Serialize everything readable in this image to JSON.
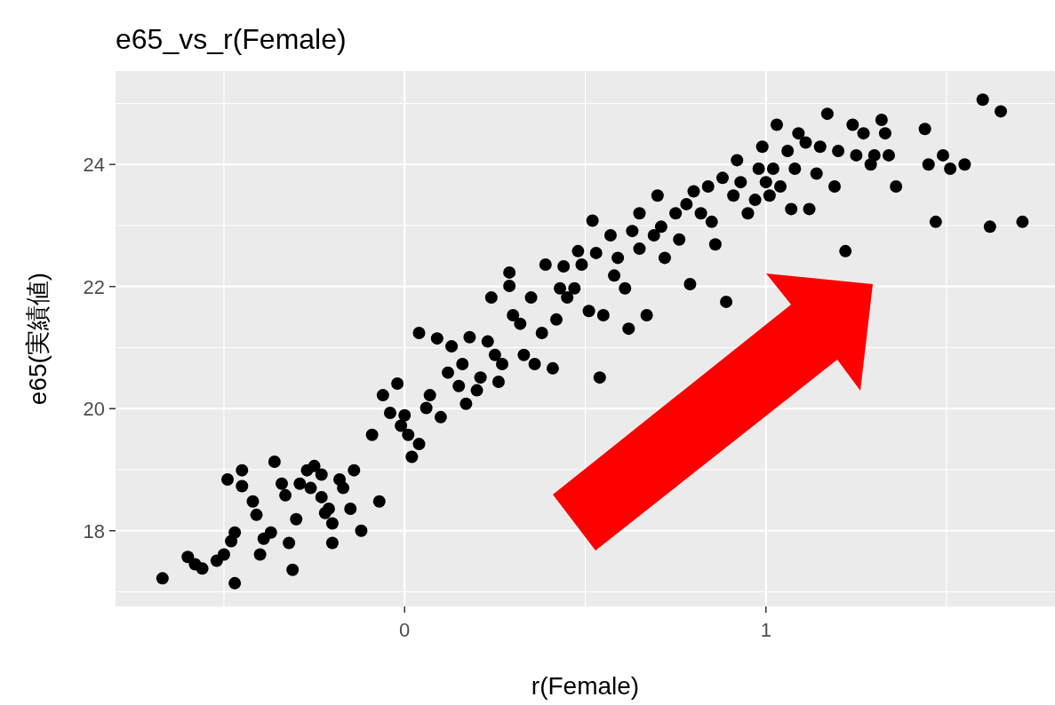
{
  "chart_data": {
    "type": "scatter",
    "title": "e65_vs_r(Female)",
    "xlabel": "r(Female)",
    "ylabel": "e65(実績値)",
    "color": "#000000",
    "marker": "circle",
    "grid": true,
    "xlim": [
      -0.8,
      1.8
    ],
    "ylim": [
      16.76,
      25.53
    ],
    "xticks": [
      {
        "value": -0.5,
        "label": null
      },
      0,
      {
        "value": 0.5,
        "label": null
      },
      1,
      {
        "value": 1.5,
        "label": null
      }
    ],
    "yticks": [
      {
        "value": 17,
        "label": null
      },
      18,
      {
        "value": 19,
        "label": null
      },
      20,
      {
        "value": 21,
        "label": null
      },
      22,
      {
        "value": 23,
        "label": null
      },
      24,
      {
        "value": 25,
        "label": null
      }
    ],
    "x": [
      -0.67,
      -0.6,
      -0.58,
      -0.56,
      -0.52,
      -0.5,
      -0.47,
      -0.48,
      -0.47,
      -0.49,
      -0.45,
      -0.45,
      -0.42,
      -0.41,
      -0.4,
      -0.39,
      -0.37,
      -0.36,
      -0.34,
      -0.33,
      -0.32,
      -0.31,
      -0.3,
      -0.29,
      -0.27,
      -0.26,
      -0.25,
      -0.23,
      -0.23,
      -0.22,
      -0.2,
      -0.21,
      -0.2,
      -0.18,
      -0.17,
      -0.15,
      -0.14,
      -0.12,
      -0.09,
      -0.07,
      -0.06,
      -0.04,
      -0.02,
      -0.01,
      0.0,
      0.01,
      0.02,
      0.04,
      0.04,
      0.06,
      0.07,
      0.09,
      0.1,
      0.12,
      0.13,
      0.15,
      0.16,
      0.17,
      0.18,
      0.2,
      0.21,
      0.23,
      0.24,
      0.25,
      0.26,
      0.27,
      0.29,
      0.29,
      0.3,
      0.32,
      0.33,
      0.35,
      0.36,
      0.38,
      0.39,
      0.41,
      0.42,
      0.43,
      0.44,
      0.45,
      0.47,
      0.48,
      0.49,
      0.51,
      0.52,
      0.53,
      0.54,
      0.55,
      0.57,
      0.58,
      0.59,
      0.61,
      0.62,
      0.63,
      0.65,
      0.65,
      0.67,
      0.69,
      0.7,
      0.71,
      0.72,
      0.75,
      0.76,
      0.78,
      0.79,
      0.8,
      0.82,
      0.84,
      0.85,
      0.86,
      0.88,
      0.89,
      0.91,
      0.92,
      0.93,
      0.95,
      0.97,
      0.98,
      0.99,
      1.0,
      1.01,
      1.02,
      1.03,
      1.04,
      1.06,
      1.07,
      1.08,
      1.09,
      1.11,
      1.12,
      1.14,
      1.15,
      1.17,
      1.19,
      1.2,
      1.22,
      1.24,
      1.25,
      1.27,
      1.29,
      1.3,
      1.32,
      1.33,
      1.34,
      1.36,
      1.44,
      1.45,
      1.47,
      1.49,
      1.51,
      1.55,
      1.6,
      1.62,
      1.65,
      1.71
    ],
    "values": [
      17.22,
      17.57,
      17.45,
      17.38,
      17.51,
      17.61,
      17.14,
      17.83,
      17.97,
      18.84,
      18.99,
      18.73,
      18.48,
      18.26,
      17.61,
      17.87,
      17.97,
      19.13,
      18.77,
      18.58,
      17.8,
      17.36,
      18.19,
      18.77,
      18.99,
      18.7,
      19.06,
      18.55,
      18.92,
      18.29,
      18.12,
      18.36,
      17.8,
      18.84,
      18.7,
      18.36,
      18.99,
      18.0,
      19.57,
      18.48,
      20.22,
      19.93,
      20.41,
      19.72,
      19.89,
      19.57,
      19.21,
      19.42,
      21.24,
      20.01,
      20.22,
      21.15,
      19.86,
      20.59,
      21.02,
      20.37,
      20.73,
      20.08,
      21.17,
      20.3,
      20.51,
      21.1,
      21.82,
      20.88,
      20.44,
      20.73,
      22.23,
      22.01,
      21.53,
      21.39,
      20.88,
      21.82,
      20.73,
      21.24,
      22.36,
      20.66,
      21.46,
      21.97,
      22.33,
      21.82,
      21.97,
      22.58,
      22.36,
      21.6,
      23.08,
      22.55,
      20.51,
      21.53,
      22.84,
      22.18,
      22.47,
      21.97,
      21.31,
      22.91,
      23.2,
      22.62,
      21.53,
      22.84,
      23.49,
      22.98,
      22.47,
      23.2,
      22.77,
      23.35,
      22.04,
      23.56,
      23.2,
      23.64,
      23.06,
      22.69,
      23.78,
      21.75,
      23.49,
      24.07,
      23.71,
      23.2,
      23.42,
      23.93,
      24.29,
      23.71,
      23.49,
      23.93,
      24.65,
      23.64,
      24.22,
      23.27,
      23.93,
      24.51,
      24.36,
      23.27,
      23.85,
      24.29,
      24.83,
      23.64,
      24.22,
      22.58,
      24.65,
      24.15,
      24.51,
      24.0,
      24.15,
      24.73,
      24.51,
      24.15,
      23.64,
      24.58,
      24.0,
      23.06,
      24.15,
      23.93,
      24.0,
      25.06,
      22.98,
      24.87,
      23.06
    ]
  }
}
